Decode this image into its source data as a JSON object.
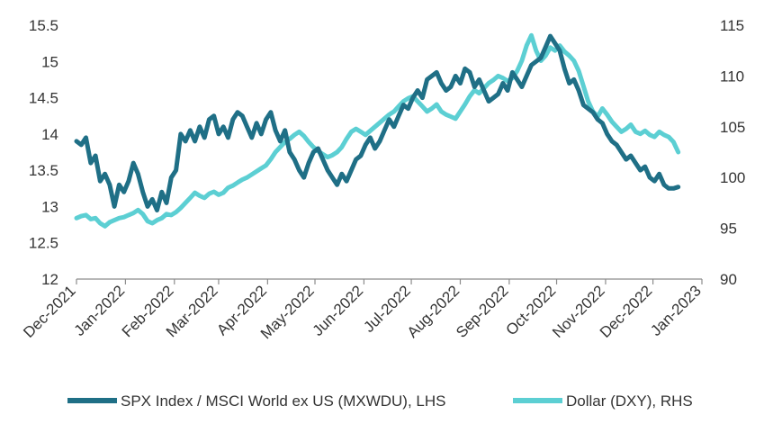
{
  "chart_data": {
    "type": "line",
    "title": "",
    "xlabel": "",
    "ylabel_left": "",
    "ylabel_right": "",
    "x_ticks": [
      "Dec-2021",
      "Jan-2022",
      "Feb-2022",
      "Mar-2022",
      "Apr-2022",
      "May-2022",
      "Jun-2022",
      "Jul-2022",
      "Aug-2022",
      "Sep-2022",
      "Oct-2022",
      "Nov-2022",
      "Dec-2022",
      "Jan-2023"
    ],
    "ylim_left": [
      12,
      15.5
    ],
    "yticks_left": [
      "12",
      "12.5",
      "13",
      "13.5",
      "14",
      "14.5",
      "15",
      "15.5"
    ],
    "ylim_right": [
      90,
      115
    ],
    "yticks_right": [
      "90",
      "95",
      "100",
      "105",
      "110",
      "115"
    ],
    "grid": false,
    "legend_position": "bottom",
    "series": [
      {
        "name": "SPX Index / MSCI World ex US (MXWDU), LHS",
        "axis": "left",
        "color": "#1f6f86",
        "x": [
          "2021-12-01",
          "2021-12-04",
          "2021-12-07",
          "2021-12-10",
          "2021-12-13",
          "2021-12-16",
          "2021-12-19",
          "2021-12-22",
          "2021-12-25",
          "2021-12-28",
          "2021-12-31",
          "2022-01-03",
          "2022-01-06",
          "2022-01-09",
          "2022-01-12",
          "2022-01-15",
          "2022-01-18",
          "2022-01-21",
          "2022-01-24",
          "2022-01-27",
          "2022-01-30",
          "2022-02-02",
          "2022-02-05",
          "2022-02-08",
          "2022-02-11",
          "2022-02-14",
          "2022-02-17",
          "2022-02-20",
          "2022-02-23",
          "2022-02-26",
          "2022-03-01",
          "2022-03-04",
          "2022-03-07",
          "2022-03-10",
          "2022-03-13",
          "2022-03-16",
          "2022-03-19",
          "2022-03-22",
          "2022-03-25",
          "2022-03-28",
          "2022-03-31",
          "2022-04-03",
          "2022-04-06",
          "2022-04-09",
          "2022-04-12",
          "2022-04-15",
          "2022-04-18",
          "2022-04-21",
          "2022-04-24",
          "2022-04-27",
          "2022-04-30",
          "2022-05-03",
          "2022-05-06",
          "2022-05-09",
          "2022-05-12",
          "2022-05-15",
          "2022-05-18",
          "2022-05-21",
          "2022-05-24",
          "2022-05-27",
          "2022-05-30",
          "2022-06-02",
          "2022-06-05",
          "2022-06-08",
          "2022-06-11",
          "2022-06-14",
          "2022-06-17",
          "2022-06-20",
          "2022-06-23",
          "2022-06-26",
          "2022-06-29",
          "2022-07-02",
          "2022-07-05",
          "2022-07-08",
          "2022-07-11",
          "2022-07-14",
          "2022-07-17",
          "2022-07-20",
          "2022-07-23",
          "2022-07-26",
          "2022-07-29",
          "2022-08-01",
          "2022-08-04",
          "2022-08-07",
          "2022-08-10",
          "2022-08-13",
          "2022-08-16",
          "2022-08-19",
          "2022-08-22",
          "2022-08-25",
          "2022-08-28",
          "2022-08-31",
          "2022-09-03",
          "2022-09-06",
          "2022-09-09",
          "2022-09-12",
          "2022-09-15",
          "2022-09-18",
          "2022-09-21",
          "2022-09-24",
          "2022-09-27",
          "2022-09-30",
          "2022-10-03",
          "2022-10-06",
          "2022-10-09",
          "2022-10-12",
          "2022-10-15",
          "2022-10-18",
          "2022-10-21",
          "2022-10-24",
          "2022-10-27",
          "2022-10-30",
          "2022-11-02",
          "2022-11-05",
          "2022-11-08",
          "2022-11-11",
          "2022-11-14",
          "2022-11-17",
          "2022-11-20",
          "2022-11-23",
          "2022-11-26",
          "2022-11-29",
          "2022-12-02",
          "2022-12-05",
          "2022-12-08",
          "2022-12-11",
          "2022-12-14",
          "2022-12-17"
        ],
        "values": [
          13.9,
          13.85,
          13.95,
          13.6,
          13.7,
          13.35,
          13.45,
          13.3,
          13.0,
          13.3,
          13.2,
          13.35,
          13.6,
          13.45,
          13.2,
          13.0,
          13.1,
          12.95,
          13.2,
          13.05,
          13.4,
          13.5,
          14.0,
          13.9,
          14.05,
          13.9,
          14.1,
          13.95,
          14.2,
          14.25,
          14.0,
          14.1,
          13.95,
          14.2,
          14.3,
          14.25,
          14.1,
          13.95,
          14.15,
          14.0,
          14.2,
          14.3,
          14.05,
          13.9,
          14.05,
          13.75,
          13.65,
          13.5,
          13.4,
          13.6,
          13.75,
          13.8,
          13.65,
          13.5,
          13.4,
          13.3,
          13.45,
          13.35,
          13.5,
          13.65,
          13.7,
          13.85,
          13.95,
          13.8,
          13.9,
          14.05,
          14.2,
          14.1,
          14.25,
          14.4,
          14.35,
          14.5,
          14.6,
          14.5,
          14.75,
          14.8,
          14.85,
          14.7,
          14.6,
          14.65,
          14.8,
          14.7,
          14.9,
          14.85,
          14.65,
          14.75,
          14.6,
          14.45,
          14.5,
          14.55,
          14.7,
          14.6,
          14.85,
          14.75,
          14.65,
          14.8,
          14.95,
          15.0,
          15.05,
          15.2,
          15.35,
          15.25,
          15.15,
          14.9,
          14.7,
          14.75,
          14.6,
          14.4,
          14.35,
          14.3,
          14.2,
          14.15,
          14.0,
          13.9,
          13.85,
          13.75,
          13.65,
          13.7,
          13.6,
          13.5,
          13.55,
          13.4,
          13.35,
          13.45,
          13.3,
          13.25,
          13.25,
          13.27
        ]
      },
      {
        "name": "Dollar (DXY), RHS",
        "axis": "right",
        "color": "#5ccfd3",
        "x": [
          "2021-12-01",
          "2021-12-04",
          "2021-12-07",
          "2021-12-10",
          "2021-12-13",
          "2021-12-16",
          "2021-12-19",
          "2021-12-22",
          "2021-12-25",
          "2021-12-28",
          "2021-12-31",
          "2022-01-03",
          "2022-01-06",
          "2022-01-09",
          "2022-01-12",
          "2022-01-15",
          "2022-01-18",
          "2022-01-21",
          "2022-01-24",
          "2022-01-27",
          "2022-01-30",
          "2022-02-02",
          "2022-02-05",
          "2022-02-08",
          "2022-02-11",
          "2022-02-14",
          "2022-02-17",
          "2022-02-20",
          "2022-02-23",
          "2022-02-26",
          "2022-03-01",
          "2022-03-04",
          "2022-03-07",
          "2022-03-10",
          "2022-03-13",
          "2022-03-16",
          "2022-03-19",
          "2022-03-22",
          "2022-03-25",
          "2022-03-28",
          "2022-03-31",
          "2022-04-03",
          "2022-04-06",
          "2022-04-09",
          "2022-04-12",
          "2022-04-15",
          "2022-04-18",
          "2022-04-21",
          "2022-04-24",
          "2022-04-27",
          "2022-04-30",
          "2022-05-03",
          "2022-05-06",
          "2022-05-09",
          "2022-05-12",
          "2022-05-15",
          "2022-05-18",
          "2022-05-21",
          "2022-05-24",
          "2022-05-27",
          "2022-05-30",
          "2022-06-02",
          "2022-06-05",
          "2022-06-08",
          "2022-06-11",
          "2022-06-14",
          "2022-06-17",
          "2022-06-20",
          "2022-06-23",
          "2022-06-26",
          "2022-06-29",
          "2022-07-02",
          "2022-07-05",
          "2022-07-08",
          "2022-07-11",
          "2022-07-14",
          "2022-07-17",
          "2022-07-20",
          "2022-07-23",
          "2022-07-26",
          "2022-07-29",
          "2022-08-01",
          "2022-08-04",
          "2022-08-07",
          "2022-08-10",
          "2022-08-13",
          "2022-08-16",
          "2022-08-19",
          "2022-08-22",
          "2022-08-25",
          "2022-08-28",
          "2022-08-31",
          "2022-09-03",
          "2022-09-06",
          "2022-09-09",
          "2022-09-12",
          "2022-09-15",
          "2022-09-18",
          "2022-09-21",
          "2022-09-24",
          "2022-09-27",
          "2022-09-30",
          "2022-10-03",
          "2022-10-06",
          "2022-10-09",
          "2022-10-12",
          "2022-10-15",
          "2022-10-18",
          "2022-10-21",
          "2022-10-24",
          "2022-10-27",
          "2022-10-30",
          "2022-11-02",
          "2022-11-05",
          "2022-11-08",
          "2022-11-11",
          "2022-11-14",
          "2022-11-17",
          "2022-11-20",
          "2022-11-23",
          "2022-11-26",
          "2022-11-29",
          "2022-12-02",
          "2022-12-05",
          "2022-12-08",
          "2022-12-11",
          "2022-12-14",
          "2022-12-17"
        ],
        "values": [
          96.0,
          96.2,
          96.3,
          95.9,
          96.0,
          95.5,
          95.2,
          95.6,
          95.8,
          96.0,
          96.1,
          96.3,
          96.5,
          96.8,
          96.4,
          95.7,
          95.5,
          95.8,
          96.0,
          96.4,
          96.3,
          96.6,
          97.0,
          97.5,
          98.0,
          98.5,
          98.2,
          98.0,
          98.4,
          98.6,
          98.3,
          98.5,
          99.0,
          99.2,
          99.5,
          99.8,
          100.0,
          100.3,
          100.6,
          100.9,
          101.2,
          101.8,
          102.5,
          103.0,
          103.5,
          103.8,
          104.2,
          104.5,
          104.1,
          103.5,
          103.0,
          102.6,
          102.3,
          102.0,
          102.2,
          102.5,
          103.0,
          103.8,
          104.5,
          104.8,
          104.5,
          104.2,
          104.6,
          105.0,
          105.4,
          105.8,
          106.2,
          106.5,
          107.0,
          107.5,
          107.8,
          108.0,
          107.5,
          107.0,
          106.5,
          106.8,
          107.2,
          106.5,
          106.2,
          106.0,
          105.8,
          106.5,
          107.2,
          108.0,
          108.6,
          108.3,
          108.8,
          109.3,
          109.6,
          110.0,
          109.8,
          109.5,
          109.8,
          110.5,
          111.5,
          113.0,
          114.0,
          112.5,
          111.5,
          112.0,
          112.8,
          112.5,
          113.0,
          112.4,
          112.0,
          111.5,
          110.5,
          109.0,
          107.5,
          106.5,
          106.0,
          106.8,
          106.2,
          105.5,
          105.0,
          104.5,
          104.8,
          105.2,
          104.5,
          104.3,
          104.6,
          104.2,
          104.0,
          104.5,
          104.2,
          104.0,
          103.5,
          102.5
        ]
      }
    ]
  }
}
